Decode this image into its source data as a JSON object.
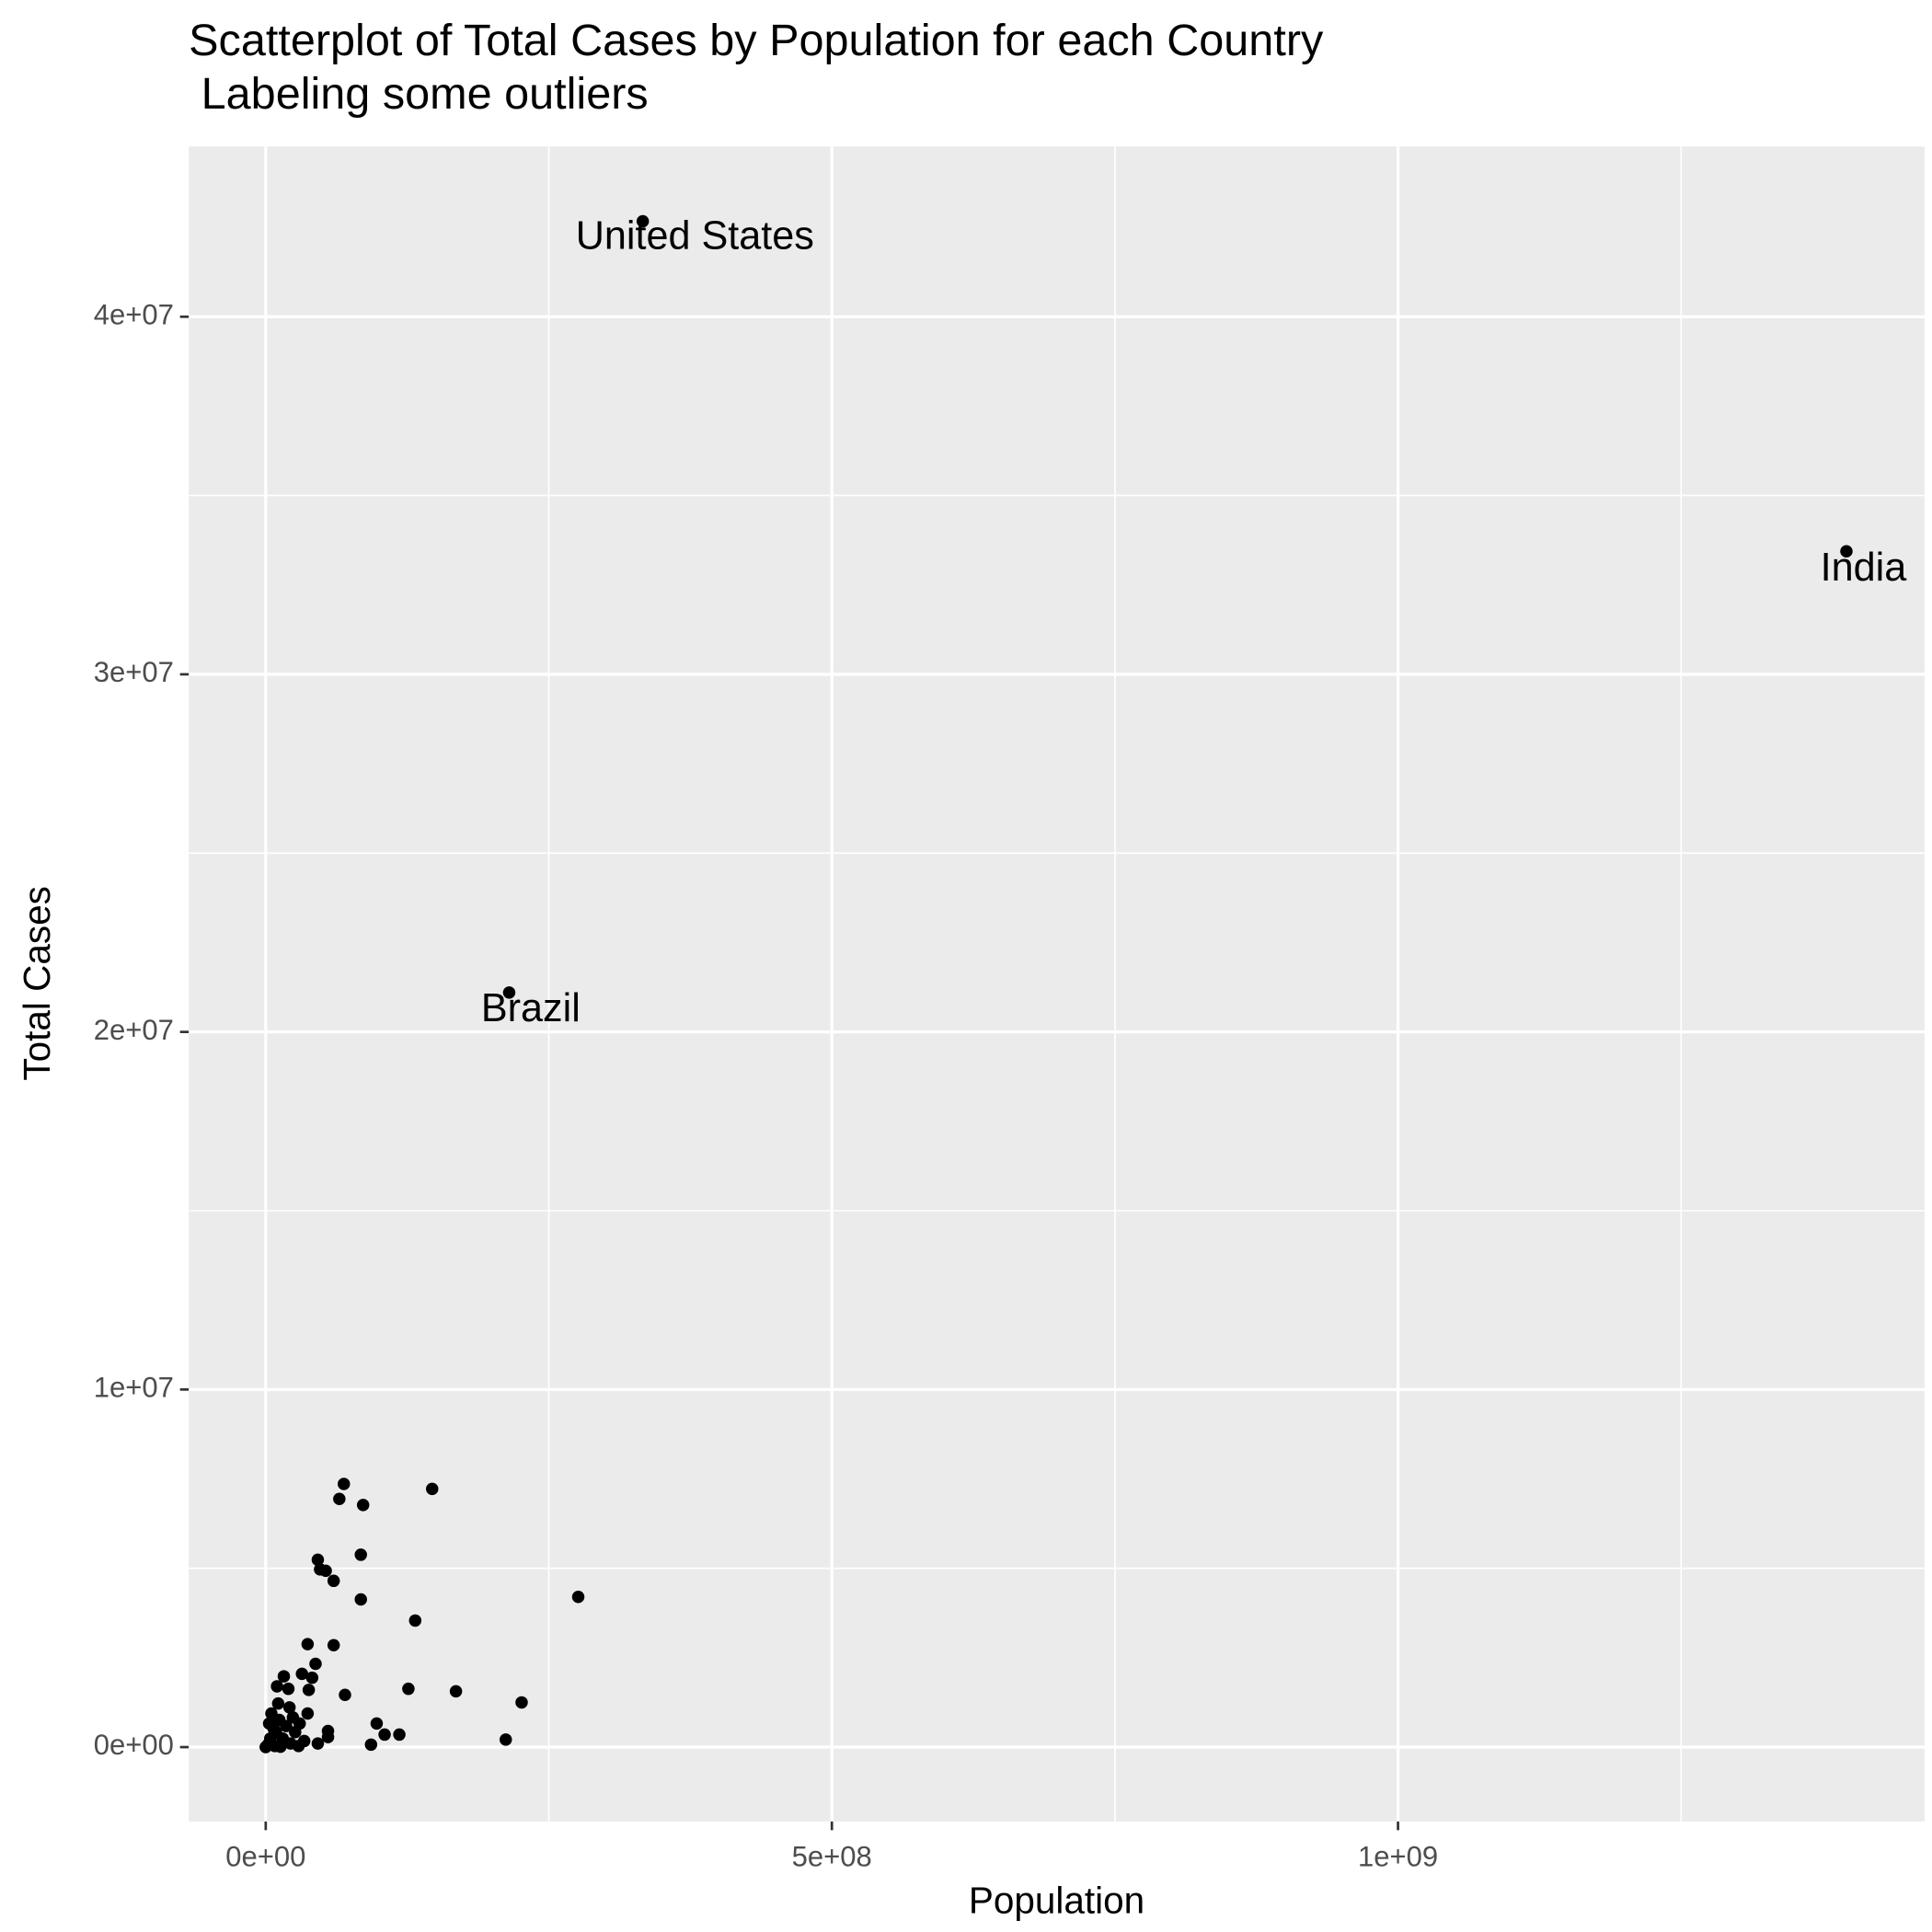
{
  "chart_data": {
    "type": "scatter",
    "title": "Scatterplot of Total Cases by Population for each Country",
    "subtitle": " Labeling some outliers",
    "x_label": "Population",
    "y_label": "Total Cases",
    "xlim": [
      -68000000,
      1465000000
    ],
    "ylim": [
      -2080000,
      44760000
    ],
    "xticks": [
      {
        "value": 0,
        "label": "0e+00"
      },
      {
        "value": 500000000,
        "label": "5e+08"
      },
      {
        "value": 1000000000,
        "label": "1e+09"
      }
    ],
    "yticks": [
      {
        "value": 0,
        "label": "0e+00"
      },
      {
        "value": 10000000,
        "label": "1e+07"
      },
      {
        "value": 20000000,
        "label": "2e+07"
      },
      {
        "value": 30000000,
        "label": "3e+07"
      },
      {
        "value": 40000000,
        "label": "4e+07"
      }
    ],
    "x_minor_grid": [
      250000000,
      750000000,
      1250000000
    ],
    "y_minor_grid": [
      5000000,
      15000000,
      25000000,
      35000000
    ],
    "grid": true,
    "color": "#000000",
    "x": [
      333000000,
      1396000000,
      215000000,
      69000000,
      147000000,
      65000000,
      86000000,
      84000000,
      46000000,
      48000000,
      53000000,
      60000000,
      276000000,
      84000000,
      132000000,
      37000000,
      60000000,
      44000000,
      16000000,
      41000000,
      32000000,
      10000000,
      20000000,
      126000000,
      168000000,
      38000000,
      70000000,
      226000000,
      11000000,
      21000000,
      37000000,
      98000000,
      55000000,
      105000000,
      118000000,
      55000000,
      212000000,
      93000000,
      46000000,
      0,
      2000000,
      4000000,
      7000000,
      9000000,
      12000000,
      15000000,
      18000000,
      22000000,
      26000000,
      30000000,
      34000000,
      3000000,
      5000000,
      24000000,
      29000000,
      13000000,
      8000000
    ],
    "values": [
      42670000,
      33440000,
      21100000,
      7360000,
      7220000,
      6940000,
      6770000,
      5380000,
      5240000,
      4970000,
      4930000,
      4650000,
      4200000,
      4130000,
      3540000,
      2880000,
      2850000,
      2330000,
      1980000,
      1940000,
      2050000,
      1700000,
      1630000,
      1630000,
      1560000,
      1600000,
      1460000,
      1250000,
      1220000,
      1110000,
      940000,
      660000,
      450000,
      350000,
      350000,
      280000,
      210000,
      70000,
      100000,
      0,
      70000,
      240000,
      520000,
      420000,
      760000,
      240000,
      590000,
      100000,
      420000,
      660000,
      170000,
      660000,
      940000,
      830000,
      30000,
      10000,
      30000
    ],
    "annotations": [
      {
        "text": "United States",
        "x": 379000000,
        "y": 42190000
      },
      {
        "text": "India",
        "x": 1411000000,
        "y": 32920000
      },
      {
        "text": "Brazil",
        "x": 234000000,
        "y": 20590000
      }
    ]
  }
}
